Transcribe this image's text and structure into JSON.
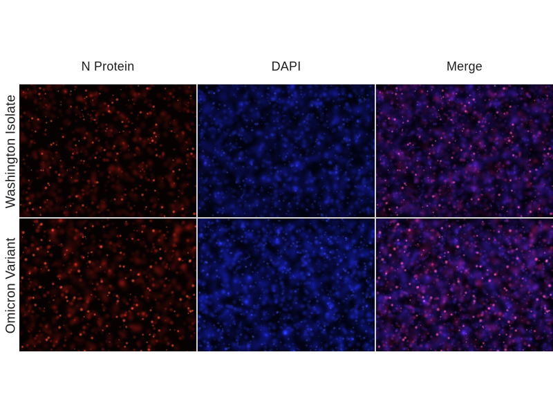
{
  "page": {
    "background": "#ffffff"
  },
  "figure": {
    "columns": [
      {
        "id": "n-protein",
        "label": "N Protein"
      },
      {
        "id": "dapi",
        "label": "DAPI"
      },
      {
        "id": "merge",
        "label": "Merge"
      }
    ],
    "rows": [
      {
        "id": "washington-isolate",
        "label": "Washington Isolate"
      },
      {
        "id": "omicron-variant",
        "label": "Omicron Variant"
      }
    ],
    "label_color": "#1c1c1c",
    "separator_color": "#d6d6d6",
    "channel_colors": {
      "n_protein_red": "#e2392a",
      "dapi_blue": "#2733c4",
      "merge_magenta": "#b43f9e"
    },
    "panels": [
      {
        "name": "washington-n-protein",
        "row": 0,
        "col": 0,
        "channel": "red",
        "bg": "#070202",
        "layers": [
          {
            "seed": 11,
            "n": 550,
            "rmin": 2.5,
            "rmax": 8,
            "rgba": [
              120,
              18,
              12,
              0.28
            ]
          },
          {
            "seed": 12,
            "n": 180,
            "rmin": 1.2,
            "rmax": 3.5,
            "rgba": [
              200,
              35,
              22,
              0.5
            ]
          },
          {
            "seed": 13,
            "n": 120,
            "rmin": 1.0,
            "rmax": 2.6,
            "rgba": [
              255,
              85,
              55,
              0.95
            ]
          },
          {
            "seed": 14,
            "n": 12,
            "rmin": 0.7,
            "rmax": 1.3,
            "rgba": [
              255,
              200,
              180,
              0.9
            ]
          }
        ]
      },
      {
        "name": "washington-dapi",
        "row": 0,
        "col": 1,
        "channel": "blue",
        "bg": "#020310",
        "layers": [
          {
            "seed": 21,
            "n": 900,
            "rmin": 4,
            "rmax": 12,
            "rgba": [
              18,
              22,
              130,
              0.2
            ]
          },
          {
            "seed": 22,
            "n": 450,
            "rmin": 2,
            "rmax": 5,
            "rgba": [
              35,
              50,
              200,
              0.3
            ]
          },
          {
            "seed": 23,
            "n": 300,
            "rmin": 0.8,
            "rmax": 2.4,
            "rgba": [
              80,
              100,
              255,
              0.4
            ]
          }
        ]
      },
      {
        "name": "washington-merge",
        "row": 0,
        "col": 2,
        "channel": "merge",
        "bg": "#05020e",
        "layers": [
          {
            "seed": 21,
            "n": 900,
            "rmin": 4,
            "rmax": 12,
            "rgba": [
              40,
              18,
              120,
              0.2
            ]
          },
          {
            "seed": 22,
            "n": 450,
            "rmin": 2,
            "rmax": 5,
            "rgba": [
              70,
              30,
              170,
              0.28
            ]
          },
          {
            "seed": 23,
            "n": 300,
            "rmin": 0.8,
            "rmax": 2.4,
            "rgba": [
              110,
              60,
              230,
              0.35
            ]
          },
          {
            "seed": 11,
            "n": 550,
            "rmin": 2.5,
            "rmax": 8,
            "rgba": [
              120,
              15,
              60,
              0.22
            ]
          },
          {
            "seed": 12,
            "n": 180,
            "rmin": 1.2,
            "rmax": 3.5,
            "rgba": [
              200,
              40,
              110,
              0.45
            ]
          },
          {
            "seed": 13,
            "n": 120,
            "rmin": 1.0,
            "rmax": 2.6,
            "rgba": [
              255,
              90,
              160,
              0.9
            ]
          },
          {
            "seed": 14,
            "n": 12,
            "rmin": 0.7,
            "rmax": 1.3,
            "rgba": [
              255,
              210,
              230,
              0.9
            ]
          }
        ]
      },
      {
        "name": "omicron-n-protein",
        "row": 1,
        "col": 0,
        "channel": "red",
        "bg": "#070202",
        "layers": [
          {
            "seed": 31,
            "n": 520,
            "rmin": 2.5,
            "rmax": 9,
            "rgba": [
              120,
              18,
              12,
              0.28
            ]
          },
          {
            "seed": 32,
            "n": 200,
            "rmin": 1.4,
            "rmax": 4,
            "rgba": [
              200,
              35,
              22,
              0.5
            ]
          },
          {
            "seed": 33,
            "n": 130,
            "rmin": 1.0,
            "rmax": 3.0,
            "rgba": [
              255,
              85,
              55,
              0.95
            ]
          },
          {
            "seed": 34,
            "n": 10,
            "rmin": 0.7,
            "rmax": 1.3,
            "rgba": [
              255,
              200,
              180,
              0.9
            ]
          }
        ]
      },
      {
        "name": "omicron-dapi",
        "row": 1,
        "col": 1,
        "channel": "blue",
        "bg": "#020312",
        "layers": [
          {
            "seed": 41,
            "n": 950,
            "rmin": 4,
            "rmax": 12,
            "rgba": [
              18,
              24,
              140,
              0.22
            ]
          },
          {
            "seed": 42,
            "n": 500,
            "rmin": 2,
            "rmax": 5,
            "rgba": [
              38,
              55,
              210,
              0.33
            ]
          },
          {
            "seed": 43,
            "n": 340,
            "rmin": 0.8,
            "rmax": 2.4,
            "rgba": [
              85,
              105,
              255,
              0.45
            ]
          }
        ]
      },
      {
        "name": "omicron-merge",
        "row": 1,
        "col": 2,
        "channel": "merge",
        "bg": "#05020e",
        "layers": [
          {
            "seed": 41,
            "n": 950,
            "rmin": 4,
            "rmax": 12,
            "rgba": [
              42,
              20,
              125,
              0.21
            ]
          },
          {
            "seed": 42,
            "n": 500,
            "rmin": 2,
            "rmax": 5,
            "rgba": [
              72,
              32,
              175,
              0.3
            ]
          },
          {
            "seed": 43,
            "n": 340,
            "rmin": 0.8,
            "rmax": 2.4,
            "rgba": [
              115,
              62,
              235,
              0.36
            ]
          },
          {
            "seed": 31,
            "n": 520,
            "rmin": 2.5,
            "rmax": 9,
            "rgba": [
              120,
              15,
              60,
              0.22
            ]
          },
          {
            "seed": 32,
            "n": 200,
            "rmin": 1.4,
            "rmax": 4,
            "rgba": [
              205,
              45,
              115,
              0.45
            ]
          },
          {
            "seed": 33,
            "n": 130,
            "rmin": 1.0,
            "rmax": 3.0,
            "rgba": [
              255,
              95,
              165,
              0.9
            ]
          },
          {
            "seed": 34,
            "n": 10,
            "rmin": 0.7,
            "rmax": 1.3,
            "rgba": [
              255,
              210,
              230,
              0.9
            ]
          }
        ]
      }
    ]
  }
}
